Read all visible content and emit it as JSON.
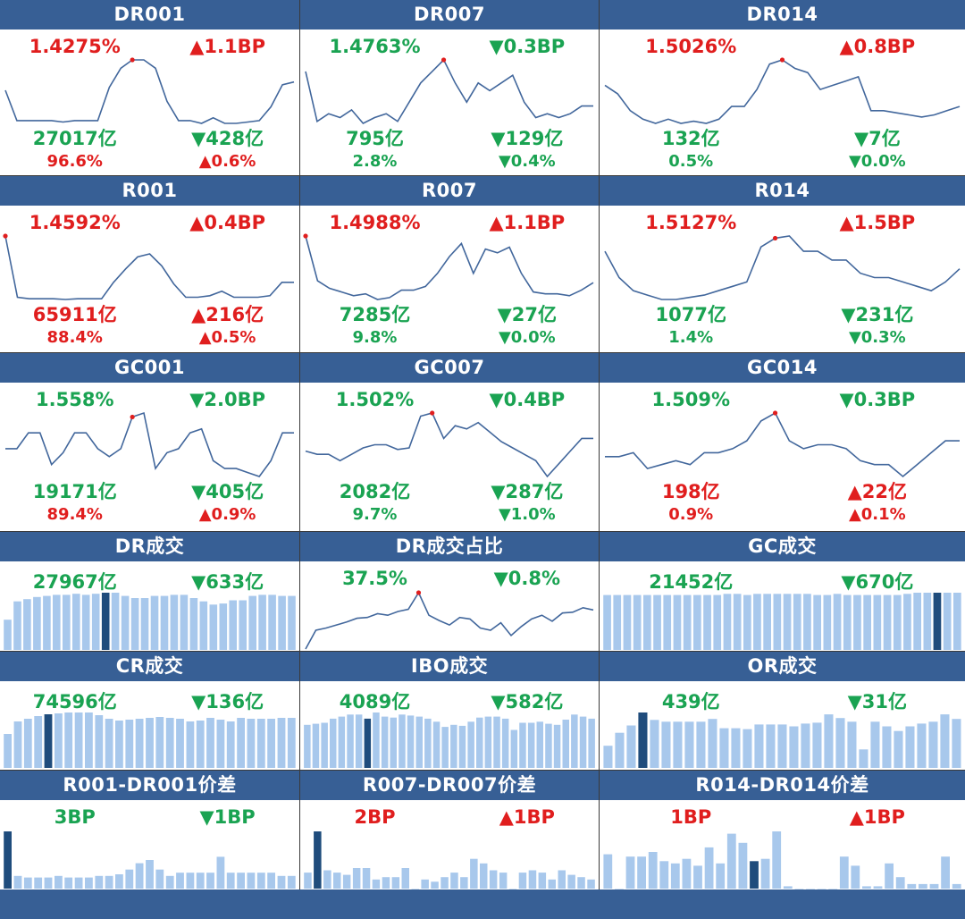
{
  "colors": {
    "header_bg": "#375f95",
    "up": "#e01e1e",
    "down": "#1aa352",
    "line": "#42679c",
    "bar": "#a8c8ec",
    "bar_highlight": "#1f4c7c",
    "grid": "#3a3a3a"
  },
  "panels": [
    {
      "title": "DR001",
      "rate": "1.4275%",
      "rate_dir": "up",
      "rate_change": "▲1.1BP",
      "volume": "27017亿",
      "volume_dir": "down",
      "volume_change": "▼428亿",
      "share": "96.6%",
      "share_dir": "up",
      "share_change": "▲0.6%"
    },
    {
      "title": "DR007",
      "rate": "1.4763%",
      "rate_dir": "down",
      "rate_change": "▼0.3BP",
      "volume": "795亿",
      "volume_dir": "down",
      "volume_change": "▼129亿",
      "share": "2.8%",
      "share_dir": "down",
      "share_change": "▼0.4%"
    },
    {
      "title": "DR014",
      "rate": "1.5026%",
      "rate_dir": "up",
      "rate_change": "▲0.8BP",
      "volume": "132亿",
      "volume_dir": "down",
      "volume_change": "▼7亿",
      "share": "0.5%",
      "share_dir": "down",
      "share_change": "▼0.0%"
    },
    {
      "title": "R001",
      "rate": "1.4592%",
      "rate_dir": "up",
      "rate_change": "▲0.4BP",
      "volume": "65911亿",
      "volume_dir": "up",
      "volume_change": "▲216亿",
      "share": "88.4%",
      "share_dir": "up",
      "share_change": "▲0.5%"
    },
    {
      "title": "R007",
      "rate": "1.4988%",
      "rate_dir": "up",
      "rate_change": "▲1.1BP",
      "volume": "7285亿",
      "volume_dir": "down",
      "volume_change": "▼27亿",
      "share": "9.8%",
      "share_dir": "down",
      "share_change": "▼0.0%"
    },
    {
      "title": "R014",
      "rate": "1.5127%",
      "rate_dir": "up",
      "rate_change": "▲1.5BP",
      "volume": "1077亿",
      "volume_dir": "down",
      "volume_change": "▼231亿",
      "share": "1.4%",
      "share_dir": "down",
      "share_change": "▼0.3%"
    },
    {
      "title": "GC001",
      "rate": "1.558%",
      "rate_dir": "down",
      "rate_change": "▼2.0BP",
      "volume": "19171亿",
      "volume_dir": "down",
      "volume_change": "▼405亿",
      "share": "89.4%",
      "share_dir": "up",
      "share_change": "▲0.9%"
    },
    {
      "title": "GC007",
      "rate": "1.502%",
      "rate_dir": "down",
      "rate_change": "▼0.4BP",
      "volume": "2082亿",
      "volume_dir": "down",
      "volume_change": "▼287亿",
      "share": "9.7%",
      "share_dir": "down",
      "share_change": "▼1.0%"
    },
    {
      "title": "GC014",
      "rate": "1.509%",
      "rate_dir": "down",
      "rate_change": "▼0.3BP",
      "volume": "198亿",
      "volume_dir": "up",
      "volume_change": "▲22亿",
      "share": "0.9%",
      "share_dir": "up",
      "share_change": "▲0.1%"
    },
    {
      "title": "DR成交",
      "rate": "27967亿",
      "rate_dir": "down",
      "rate_change": "▼633亿"
    },
    {
      "title": "DR成交占比",
      "rate": "37.5%",
      "rate_dir": "down",
      "rate_change": "▼0.8%"
    },
    {
      "title": "GC成交",
      "rate": "21452亿",
      "rate_dir": "down",
      "rate_change": "▼670亿"
    },
    {
      "title": "CR成交",
      "rate": "74596亿",
      "rate_dir": "down",
      "rate_change": "▼136亿"
    },
    {
      "title": "IBO成交",
      "rate": "4089亿",
      "rate_dir": "down",
      "rate_change": "▼582亿"
    },
    {
      "title": "OR成交",
      "rate": "439亿",
      "rate_dir": "down",
      "rate_change": "▼31亿"
    },
    {
      "title": "R001-DR001价差",
      "rate": "3BP",
      "rate_dir": "down",
      "rate_change": "▼1BP"
    },
    {
      "title": "R007-DR007价差",
      "rate": "2BP",
      "rate_dir": "up",
      "rate_change": "▲1BP"
    },
    {
      "title": "R014-DR014价差",
      "rate": "1BP",
      "rate_dir": "up",
      "rate_change": "▲1BP"
    }
  ],
  "chart_data": [
    {
      "panel": "DR001",
      "type": "line",
      "values": [
        1.44,
        1.33,
        1.33,
        1.33,
        1.33,
        1.325,
        1.33,
        1.33,
        1.33,
        1.45,
        1.52,
        1.55,
        1.55,
        1.52,
        1.4,
        1.33,
        1.33,
        1.32,
        1.34,
        1.32,
        1.32,
        1.325,
        1.33,
        1.38,
        1.46,
        1.47
      ],
      "highlight_index": 11
    },
    {
      "panel": "DR007",
      "type": "line",
      "values": [
        1.48,
        1.35,
        1.37,
        1.36,
        1.38,
        1.345,
        1.36,
        1.37,
        1.35,
        1.4,
        1.45,
        1.48,
        1.51,
        1.45,
        1.4,
        1.45,
        1.43,
        1.45,
        1.47,
        1.4,
        1.36,
        1.37,
        1.36,
        1.37,
        1.39,
        1.39
      ],
      "highlight_index": 12
    },
    {
      "panel": "DR014",
      "type": "line",
      "values": [
        1.46,
        1.44,
        1.4,
        1.38,
        1.37,
        1.38,
        1.37,
        1.375,
        1.37,
        1.38,
        1.41,
        1.41,
        1.45,
        1.51,
        1.52,
        1.5,
        1.49,
        1.45,
        1.46,
        1.47,
        1.48,
        1.4,
        1.4,
        1.395,
        1.39,
        1.385,
        1.39,
        1.4,
        1.41
      ],
      "highlight_index": 14
    },
    {
      "panel": "R001",
      "type": "line",
      "values": [
        1.72,
        1.31,
        1.3,
        1.3,
        1.3,
        1.295,
        1.3,
        1.3,
        1.3,
        1.41,
        1.5,
        1.58,
        1.6,
        1.52,
        1.4,
        1.31,
        1.31,
        1.32,
        1.35,
        1.31,
        1.31,
        1.31,
        1.32,
        1.41,
        1.41
      ],
      "highlight_index": 0
    },
    {
      "panel": "R007",
      "type": "line",
      "values": [
        1.72,
        1.48,
        1.44,
        1.42,
        1.4,
        1.41,
        1.38,
        1.39,
        1.43,
        1.43,
        1.45,
        1.52,
        1.61,
        1.68,
        1.52,
        1.65,
        1.63,
        1.66,
        1.52,
        1.42,
        1.41,
        1.41,
        1.4,
        1.43,
        1.47
      ],
      "highlight_index": 0
    },
    {
      "panel": "R014",
      "type": "line",
      "values": [
        1.49,
        1.43,
        1.4,
        1.39,
        1.38,
        1.38,
        1.385,
        1.39,
        1.4,
        1.41,
        1.42,
        1.5,
        1.52,
        1.525,
        1.49,
        1.49,
        1.47,
        1.47,
        1.44,
        1.43,
        1.43,
        1.42,
        1.41,
        1.4,
        1.42,
        1.45
      ],
      "highlight_index": 12
    },
    {
      "panel": "GC001",
      "type": "line",
      "values": [
        1.48,
        1.48,
        1.52,
        1.52,
        1.44,
        1.47,
        1.52,
        1.52,
        1.48,
        1.46,
        1.48,
        1.56,
        1.57,
        1.43,
        1.47,
        1.48,
        1.52,
        1.53,
        1.45,
        1.43,
        1.43,
        1.42,
        1.41,
        1.45,
        1.52,
        1.52
      ],
      "highlight_index": 11
    },
    {
      "panel": "GC007",
      "type": "line",
      "values": [
        1.46,
        1.45,
        1.45,
        1.43,
        1.45,
        1.47,
        1.48,
        1.48,
        1.465,
        1.47,
        1.57,
        1.58,
        1.5,
        1.54,
        1.53,
        1.55,
        1.52,
        1.49,
        1.47,
        1.45,
        1.43,
        1.38,
        1.42,
        1.46,
        1.5,
        1.5
      ],
      "highlight_index": 11
    },
    {
      "panel": "GC014",
      "type": "line",
      "values": [
        1.42,
        1.42,
        1.43,
        1.39,
        1.4,
        1.41,
        1.4,
        1.43,
        1.43,
        1.44,
        1.46,
        1.51,
        1.53,
        1.46,
        1.44,
        1.45,
        1.45,
        1.44,
        1.41,
        1.4,
        1.4,
        1.37,
        1.4,
        1.43,
        1.46,
        1.46
      ],
      "highlight_index": 12
    },
    {
      "panel": "DR成交",
      "type": "bar",
      "values": [
        28,
        45,
        47,
        49,
        50,
        51,
        51,
        52,
        51,
        52,
        53,
        53,
        50,
        48,
        48,
        50,
        50,
        51,
        51,
        48,
        45,
        42,
        43,
        46,
        46,
        50,
        51,
        51,
        50,
        50
      ],
      "highlight_index": 10
    },
    {
      "panel": "DR成交占比",
      "type": "line",
      "values": [
        30,
        32.5,
        32.8,
        33.2,
        33.6,
        34.1,
        34.2,
        34.7,
        34.5,
        35.0,
        35.3,
        37.5,
        34.5,
        33.8,
        33.2,
        34.2,
        34.0,
        32.8,
        32.5,
        33.5,
        31.8,
        33.0,
        34.0,
        34.5,
        33.7,
        34.8,
        34.9,
        35.5,
        35.2
      ],
      "highlight_index": 11
    },
    {
      "panel": "GC成交",
      "type": "bar",
      "values": [
        48,
        48,
        48,
        48,
        48,
        48,
        48,
        48,
        48,
        48,
        48,
        48,
        49,
        49,
        48,
        49,
        49,
        49,
        49,
        49,
        49,
        48,
        48,
        49,
        48,
        48,
        48,
        48,
        48,
        48,
        49,
        50,
        50,
        50,
        50,
        50
      ],
      "highlight_index": 33
    },
    {
      "panel": "CR成交",
      "type": "bar",
      "values": [
        38,
        52,
        55,
        58,
        60,
        61,
        62,
        62,
        62,
        59,
        55,
        53,
        54,
        55,
        56,
        57,
        56,
        55,
        52,
        53,
        56,
        54,
        52,
        56,
        55,
        55,
        55,
        56,
        56
      ],
      "highlight_index": 4
    },
    {
      "panel": "IBO成交",
      "type": "bar",
      "values": [
        42,
        43,
        44,
        48,
        50,
        52,
        52,
        48,
        54,
        50,
        49,
        52,
        51,
        50,
        48,
        45,
        40,
        42,
        41,
        45,
        49,
        50,
        50,
        48,
        37,
        44,
        44,
        45,
        43,
        42,
        47,
        52,
        50,
        48
      ],
      "highlight_index": 7
    },
    {
      "panel": "OR成交",
      "type": "bar",
      "values": [
        24,
        38,
        46,
        60,
        52,
        50,
        50,
        50,
        50,
        53,
        43,
        43,
        42,
        47,
        47,
        47,
        45,
        48,
        49,
        58,
        54,
        50,
        20,
        50,
        45,
        40,
        45,
        48,
        50,
        58,
        53
      ],
      "highlight_index": 3
    },
    {
      "panel": "R001-DR001价差",
      "type": "bar",
      "values": [
        18,
        4,
        3.5,
        3.5,
        3.5,
        4,
        3.5,
        3.5,
        3.5,
        4,
        4,
        4.5,
        6,
        8,
        9,
        6,
        4,
        5,
        5,
        5,
        5,
        10,
        5,
        5,
        5,
        5,
        5,
        4,
        4
      ],
      "highlight_index": 0
    },
    {
      "panel": "R007-DR007价差",
      "type": "bar",
      "values": [
        7,
        25,
        8,
        7,
        6,
        9,
        9,
        4,
        5,
        5,
        9,
        0,
        4,
        3,
        5,
        7,
        5,
        13,
        11,
        8,
        7,
        0,
        7,
        8,
        7,
        4,
        8,
        6,
        5,
        4
      ],
      "highlight_index": 1
    },
    {
      "panel": "R014-DR014价差",
      "type": "bar",
      "values": [
        15,
        0,
        14,
        14,
        16,
        12,
        11,
        13,
        10,
        18,
        11,
        24,
        20,
        12,
        13,
        25,
        1,
        0,
        0,
        0,
        0,
        14,
        10,
        1,
        1,
        11,
        5,
        2,
        2,
        2,
        14,
        2
      ],
      "highlight_index": 13
    }
  ]
}
